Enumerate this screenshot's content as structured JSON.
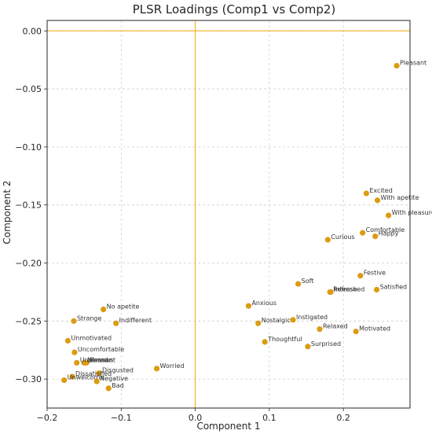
{
  "chart_data": {
    "type": "scatter",
    "title": "PLSR Loadings (Comp1 vs Comp2)",
    "xlabel": "Component 1",
    "ylabel": "Component 2",
    "xlim": [
      -0.2,
      0.29
    ],
    "ylim": [
      -0.325,
      0.009
    ],
    "xticks": [
      -0.2,
      -0.1,
      0.0,
      0.1,
      0.2
    ],
    "xtick_labels": [
      "−0.2",
      "−0.1",
      "0.0",
      "0.1",
      "0.2"
    ],
    "yticks": [
      0.0,
      -0.05,
      -0.1,
      -0.15,
      -0.2,
      -0.25,
      -0.3
    ],
    "ytick_labels": [
      "0.00",
      "−0.05",
      "−0.10",
      "−0.15",
      "−0.20",
      "−0.25",
      "−0.30"
    ],
    "grid": true,
    "reference_lines": {
      "x": 0.0,
      "y": 0.0,
      "color": "#f2b636"
    },
    "point_color": "#db9c12",
    "points": [
      {
        "label": "Pleasant",
        "x": 0.272,
        "y": -0.03
      },
      {
        "label": "Excited",
        "x": 0.231,
        "y": -0.14
      },
      {
        "label": "With apetite",
        "x": 0.246,
        "y": -0.146
      },
      {
        "label": "With pleasure",
        "x": 0.261,
        "y": -0.159
      },
      {
        "label": "Comfortable",
        "x": 0.226,
        "y": -0.174
      },
      {
        "label": "Happy",
        "x": 0.243,
        "y": -0.177
      },
      {
        "label": "Curious",
        "x": 0.179,
        "y": -0.18
      },
      {
        "label": "Festive",
        "x": 0.223,
        "y": -0.211
      },
      {
        "label": "Soft",
        "x": 0.139,
        "y": -0.218
      },
      {
        "label": "Refreshed",
        "x": 0.182,
        "y": -0.225
      },
      {
        "label": "Intense",
        "x": 0.183,
        "y": -0.225
      },
      {
        "label": "Satisfied",
        "x": 0.245,
        "y": -0.223
      },
      {
        "label": "Anxious",
        "x": 0.072,
        "y": -0.237
      },
      {
        "label": "Instigated",
        "x": 0.132,
        "y": -0.249
      },
      {
        "label": "Nostalgic",
        "x": 0.085,
        "y": -0.252
      },
      {
        "label": "Relaxed",
        "x": 0.168,
        "y": -0.257
      },
      {
        "label": "Motivated",
        "x": 0.217,
        "y": -0.259
      },
      {
        "label": "Thoughtful",
        "x": 0.094,
        "y": -0.268
      },
      {
        "label": "Surprised",
        "x": 0.152,
        "y": -0.272
      },
      {
        "label": "No apetite",
        "x": -0.124,
        "y": -0.24
      },
      {
        "label": "Strange",
        "x": -0.164,
        "y": -0.25
      },
      {
        "label": "Indifferent",
        "x": -0.107,
        "y": -0.252
      },
      {
        "label": "Unmotivated",
        "x": -0.172,
        "y": -0.267
      },
      {
        "label": "Uncomfortable",
        "x": -0.163,
        "y": -0.277
      },
      {
        "label": "Unpleasant",
        "x": -0.16,
        "y": -0.286
      },
      {
        "label": "Nervous",
        "x": -0.15,
        "y": -0.286
      },
      {
        "label": "Bored",
        "x": -0.147,
        "y": -0.286
      },
      {
        "label": "Disgusted",
        "x": -0.13,
        "y": -0.295
      },
      {
        "label": "Dissatisfied",
        "x": -0.166,
        "y": -0.298
      },
      {
        "label": "Worried",
        "x": -0.052,
        "y": -0.291
      },
      {
        "label": "Unwelcome",
        "x": -0.177,
        "y": -0.301
      },
      {
        "label": "Negative",
        "x": -0.133,
        "y": -0.302
      },
      {
        "label": "Bad",
        "x": -0.117,
        "y": -0.308
      }
    ]
  }
}
